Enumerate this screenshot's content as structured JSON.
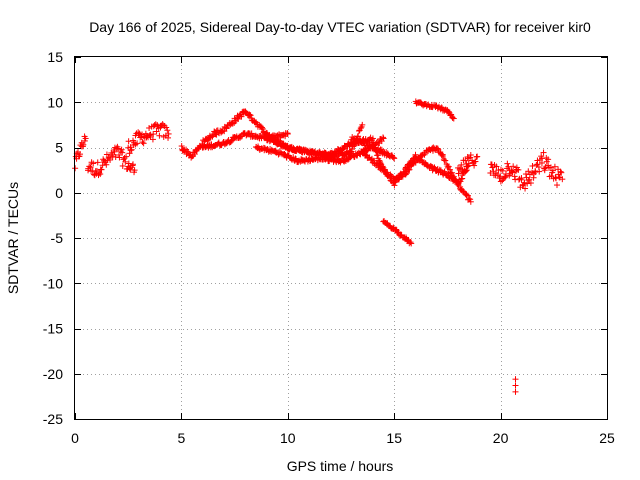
{
  "chart_data": {
    "type": "scatter",
    "title": "Day 166 of 2025, Sidereal Day-to-day VTEC variation (SDTVAR) for receiver kir0",
    "xlabel": "GPS time / hours",
    "ylabel": "SDTVAR / TECUs",
    "xlim": [
      0,
      25
    ],
    "ylim": [
      -25,
      15
    ],
    "xticks": [
      0,
      5,
      10,
      15,
      20,
      25
    ],
    "yticks": [
      15,
      10,
      5,
      0,
      -5,
      -10,
      -15,
      -20,
      -25
    ],
    "xtick_labels": [
      "0",
      "5",
      "10",
      "15",
      "20",
      "25"
    ],
    "ytick_labels": [
      "15",
      "10",
      "5",
      "0",
      "-5",
      "-10",
      "-15",
      "-20",
      "-25"
    ],
    "grid": true,
    "marker": "+",
    "color": "#ff0000",
    "series": [
      {
        "name": "SDTVAR",
        "segments": [
          {
            "x": [
              0.0,
              0.2,
              0.4,
              0.5
            ],
            "y": [
              3.0,
              4.5,
              5.5,
              6.0
            ],
            "spread": 1.5
          },
          {
            "x": [
              0.6,
              1.0,
              1.5,
              2.0,
              2.5,
              2.8
            ],
            "y": [
              3.0,
              2.5,
              3.5,
              4.5,
              3.0,
              2.5
            ],
            "spread": 1.6
          },
          {
            "x": [
              2.5,
              3.0,
              3.5,
              4.0,
              4.4
            ],
            "y": [
              5.0,
              6.0,
              6.5,
              7.0,
              6.5
            ],
            "spread": 1.6
          },
          {
            "x": [
              5.0,
              5.5,
              6.0,
              6.5,
              7.0,
              7.5,
              8.0
            ],
            "y": [
              5.0,
              4.0,
              5.5,
              6.5,
              7.0,
              8.0,
              9.0
            ],
            "spread": 0.5
          },
          {
            "x": [
              6.0,
              7.0,
              8.0,
              9.0,
              10.0
            ],
            "y": [
              5.0,
              5.5,
              6.5,
              6.0,
              6.5
            ],
            "spread": 0.4
          },
          {
            "x": [
              8.0,
              9.0,
              10.0,
              11.0,
              12.0,
              13.0,
              13.5
            ],
            "y": [
              9.0,
              6.5,
              5.0,
              4.5,
              4.0,
              4.5,
              7.5
            ],
            "spread": 0.4
          },
          {
            "x": [
              8.5,
              9.5,
              10.5,
              11.5,
              12.5,
              13.5,
              14.5
            ],
            "y": [
              5.0,
              4.5,
              3.5,
              3.8,
              3.5,
              4.5,
              6.0
            ],
            "spread": 0.4
          },
          {
            "x": [
              9.0,
              10.0,
              11.0,
              12.0,
              13.0,
              14.0
            ],
            "y": [
              6.0,
              5.0,
              4.5,
              4.2,
              5.5,
              6.0
            ],
            "spread": 0.4
          },
          {
            "x": [
              13.0,
              13.5,
              14.0,
              14.5,
              15.0
            ],
            "y": [
              6.0,
              5.5,
              5.0,
              4.5,
              3.8
            ],
            "spread": 0.4
          },
          {
            "x": [
              13.5,
              14.0,
              14.5,
              15.0,
              15.5,
              16.0,
              16.5,
              17.0,
              17.3,
              17.6,
              18.0,
              18.3,
              18.6
            ],
            "y": [
              4.5,
              3.5,
              2.5,
              1.5,
              2.0,
              3.5,
              4.5,
              5.0,
              4.0,
              2.5,
              0.8,
              0.0,
              -1.0
            ],
            "spread": 0.4
          },
          {
            "x": [
              14.0,
              14.3,
              14.7,
              15.0,
              15.5,
              16.0,
              16.5,
              17.0,
              17.5,
              18.0,
              18.5
            ],
            "y": [
              5.5,
              3.5,
              2.0,
              1.0,
              2.5,
              4.0,
              3.0,
              2.5,
              2.0,
              1.0,
              3.0
            ],
            "spread": 0.4
          },
          {
            "x": [
              14.5,
              15.0,
              15.5,
              15.8
            ],
            "y": [
              -3.2,
              -4.0,
              -5.0,
              -5.6
            ],
            "spread": 0.3
          },
          {
            "x": [
              16.0,
              16.5,
              17.0,
              17.5,
              17.8
            ],
            "y": [
              10.0,
              9.7,
              9.5,
              9.0,
              8.2
            ],
            "spread": 0.3
          },
          {
            "x": [
              18.0,
              18.3,
              18.6,
              18.9
            ],
            "y": [
              2.0,
              3.0,
              3.5,
              4.0
            ],
            "spread": 1.5
          },
          {
            "x": [
              19.5,
              20.0,
              20.5,
              21.0,
              21.5,
              22.0,
              22.5,
              22.9
            ],
            "y": [
              2.5,
              2.0,
              3.0,
              1.0,
              2.0,
              3.5,
              2.0,
              1.5
            ],
            "spread": 2.0
          },
          {
            "x": [
              20.7,
              20.7,
              20.7
            ],
            "y": [
              -20.6,
              -21.3,
              -22.0
            ],
            "spread": 0.0
          }
        ]
      }
    ]
  }
}
